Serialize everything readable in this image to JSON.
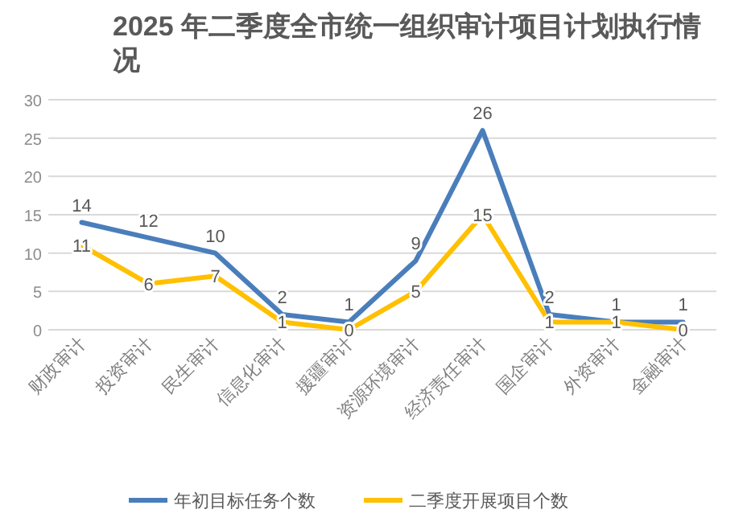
{
  "chart_data": {
    "type": "line",
    "title": "2025 年二季度全市统一组织审计项目计划执行情况",
    "categories": [
      "财政审计",
      "投资审计",
      "民生审计",
      "信息化审计",
      "援疆审计",
      "资源环境审计",
      "经济责任审计",
      "国企审计",
      "外资审计",
      "金融审计"
    ],
    "series": [
      {
        "name": "年初目标任务个数",
        "color": "#4a7ebb",
        "values": [
          14,
          12,
          10,
          2,
          1,
          9,
          26,
          2,
          1,
          1
        ]
      },
      {
        "name": "二季度开展项目个数",
        "color": "#ffc000",
        "values": [
          11,
          6,
          7,
          1,
          0,
          5,
          15,
          1,
          1,
          0
        ]
      }
    ],
    "ylim": [
      0,
      30
    ],
    "yticks": [
      0,
      5,
      10,
      15,
      20,
      25,
      30
    ],
    "grid": "y",
    "legend": "bottom",
    "data_labels": true,
    "line_style": "solid"
  }
}
